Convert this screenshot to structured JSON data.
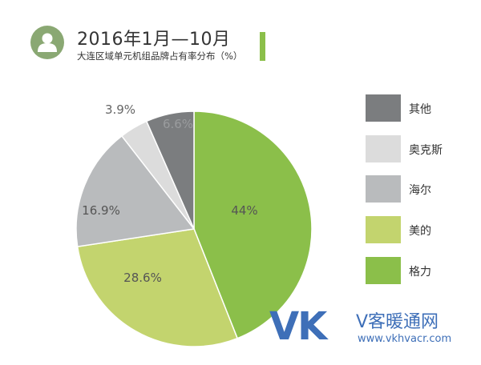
{
  "header": {
    "title": "2016年1月—10月",
    "subtitle": "大连区域单元机组品牌占有率分布（%）",
    "icon": "user-icon"
  },
  "colors": {
    "accent": "#8bbf4a",
    "icon_bg": "#8aa873"
  },
  "chart_data": {
    "type": "pie",
    "title": "2016年1月—10月",
    "subtitle": "大连区域单元机组品牌占有率分布（%）",
    "unit": "%",
    "start_angle_deg": 0,
    "direction": "clockwise",
    "slices": [
      {
        "name": "格力",
        "value": 44,
        "label": "44%",
        "color": "#8bbf4a"
      },
      {
        "name": "美的",
        "value": 28.6,
        "label": "28.6%",
        "color": "#c3d46e"
      },
      {
        "name": "海尔",
        "value": 16.9,
        "label": "16.9%",
        "color": "#b9bbbd"
      },
      {
        "name": "奥克斯",
        "value": 3.9,
        "label": "3.9%",
        "color": "#dcdcdc"
      },
      {
        "name": "其他",
        "value": 6.6,
        "label": "6.6%",
        "color": "#7b7d7f"
      }
    ],
    "legend": {
      "position": "right",
      "entries": [
        {
          "label": "其他",
          "color": "#7b7d7f"
        },
        {
          "label": "奥克斯",
          "color": "#dcdcdc"
        },
        {
          "label": "海尔",
          "color": "#b9bbbd"
        },
        {
          "label": "美的",
          "color": "#c3d46e"
        },
        {
          "label": "格力",
          "color": "#8bbf4a"
        }
      ]
    }
  },
  "watermark": {
    "letters_v": "V",
    "letters_k": "K",
    "name": "V客暖通网",
    "url": "www.vkhvacr.com"
  }
}
